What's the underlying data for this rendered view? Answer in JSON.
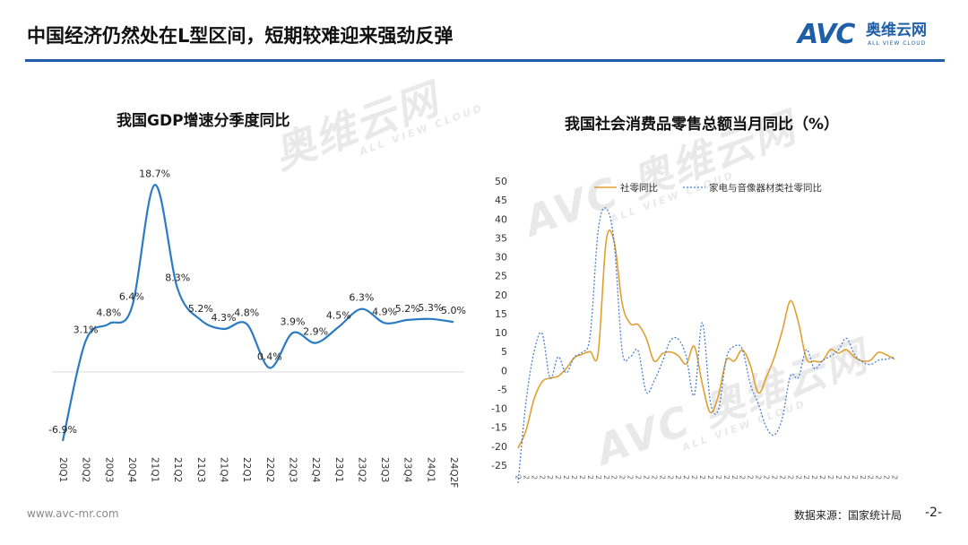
{
  "header": {
    "title": "中国经济仍然处在L型区间，短期较难迎来强劲反弹"
  },
  "logo": {
    "mark": "AVC",
    "cn": "奥维云网",
    "en": "ALL VIEW CLOUD"
  },
  "watermark": {
    "mark": "AVC",
    "cn": "奥维云网",
    "en": "ALL VIEW CLOUD"
  },
  "footer": {
    "url": "www.avc-mr.com",
    "source": "数据来源：国家统计局",
    "page": "-2-"
  },
  "colors": {
    "accent": "#1f5fa8",
    "gdp_line": "#2b7bc4",
    "retail_line": "#e0a030",
    "appliance_line": "#4a7fd0"
  },
  "chart_data": [
    {
      "type": "line",
      "title": "我国GDP增速分季度同比",
      "categories": [
        "20Q1",
        "20Q2",
        "20Q3",
        "20Q4",
        "21Q1",
        "21Q2",
        "21Q3",
        "21Q4",
        "22Q1",
        "22Q2",
        "22Q3",
        "22Q4",
        "23Q1",
        "23Q2",
        "23Q3",
        "23Q4",
        "24Q1",
        "24Q2F"
      ],
      "series": [
        {
          "values": [
            -6.9,
            3.1,
            4.8,
            6.4,
            18.7,
            8.3,
            5.2,
            4.3,
            4.8,
            0.4,
            3.9,
            2.9,
            4.5,
            6.3,
            4.9,
            5.2,
            5.3,
            5.0
          ]
        }
      ],
      "data_labels": [
        "-6.9%",
        "3.1%",
        "4.8%",
        "6.4%",
        "18.7%",
        "8.3%",
        "5.2%",
        "4.3%",
        "4.8%",
        "0.4%",
        "3.9%",
        "2.9%",
        "4.5%",
        "6.3%",
        "4.9%",
        "5.2%",
        "5.3%",
        "5.0%"
      ],
      "ylim": [
        -7,
        19
      ]
    },
    {
      "type": "line",
      "title": "我国社会消费品零售总额当月同比（%）",
      "x_tick_glyph": "2",
      "yticks": [
        50,
        45,
        40,
        35,
        30,
        25,
        20,
        15,
        10,
        5,
        0,
        -5,
        -10,
        -15,
        -20,
        -25
      ],
      "ylim": [
        -25,
        50
      ],
      "legend_position": "top-left",
      "series": [
        {
          "name": "社零同比",
          "values": [
            -20.5,
            -15.8,
            -7.5,
            -3,
            -2,
            -1.5,
            0.5,
            3.3,
            4.3,
            5,
            4.6,
            34.2,
            34,
            17.7,
            12.4,
            12.1,
            8.5,
            2.5,
            4.4,
            4.9,
            3.9,
            1.7,
            6.4,
            -3.5,
            -11.1,
            -6.7,
            2.7,
            2.5,
            5.4,
            1.4,
            -5.9,
            -1.8,
            3.5,
            10.6,
            18.4,
            12.7,
            3.1,
            2.5,
            2.5,
            5.5,
            4.6,
            5.5,
            3.5,
            2.5,
            2.7,
            4.8,
            4.1,
            3.0
          ]
        },
        {
          "name": "家电与音像器材类社零同比",
          "values": [
            -29.7,
            -8.2,
            5,
            9.8,
            -2,
            3.6,
            -0.6,
            3.5,
            4.8,
            9.2,
            37,
            42.8,
            33.8,
            5.2,
            3.6,
            5.2,
            -5.7,
            -2.7,
            2.2,
            7.8,
            8.3,
            3.7,
            -6.5,
            12.6,
            -8.1,
            -10.4,
            3.2,
            6.4,
            5.6,
            -3.6,
            -8.8,
            -15,
            -17,
            -12.5,
            -1.4,
            -1.9,
            5.5,
            0.5,
            2.6,
            3.8,
            5.4,
            8.5,
            4.3,
            2.3,
            1.6,
            2.7,
            3.0,
            3.5
          ]
        }
      ]
    }
  ]
}
